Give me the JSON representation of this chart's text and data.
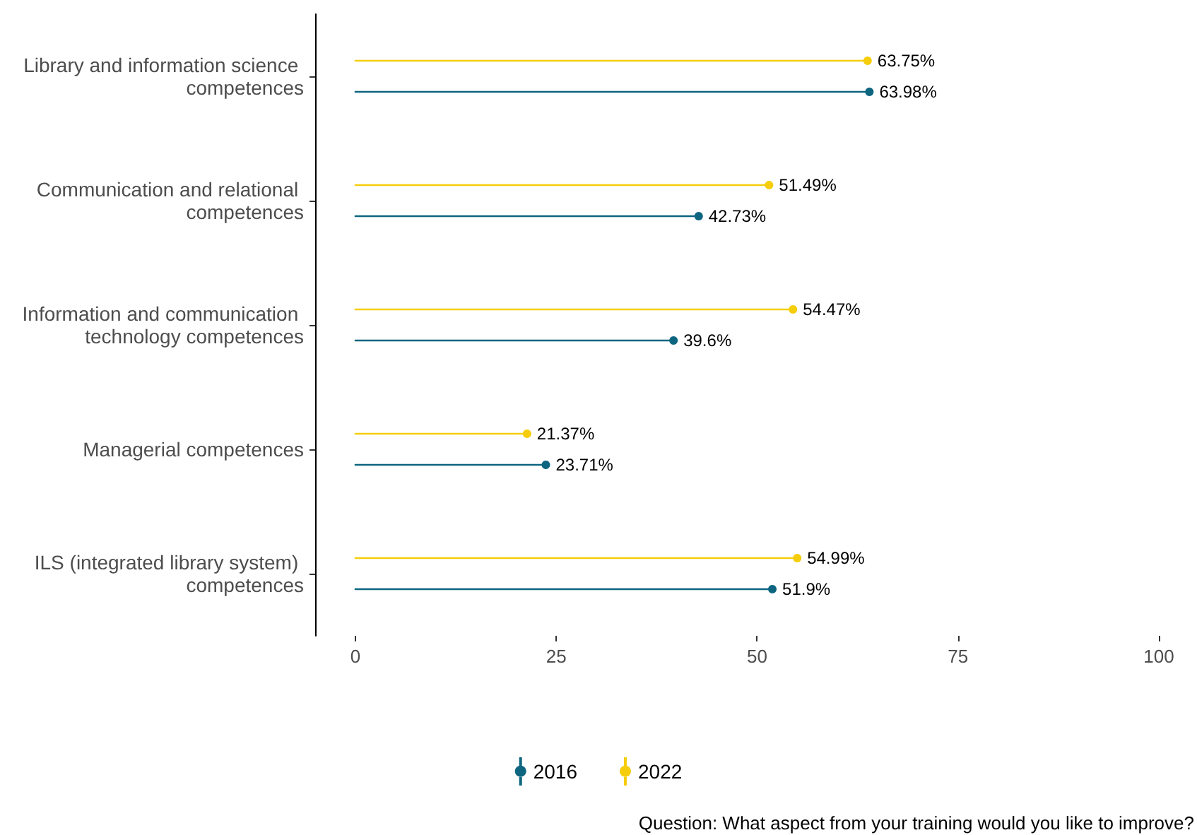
{
  "chart_data": {
    "type": "lollipop",
    "orientation": "horizontal",
    "categories": [
      "Library and information science competences",
      "Communication and relational competences",
      "Information and communication technology competences",
      "Managerial competences",
      "ILS (integrated library system) competences"
    ],
    "series": [
      {
        "name": "2016",
        "color": "#0d6580",
        "values": [
          63.98,
          42.73,
          39.6,
          23.71,
          51.9
        ],
        "value_labels": [
          "63.98%",
          "42.73%",
          "39.6%",
          "23.71%",
          "51.9%"
        ]
      },
      {
        "name": "2022",
        "color": "#f5cd0a",
        "values": [
          63.75,
          51.49,
          54.47,
          21.37,
          54.99
        ],
        "value_labels": [
          "63.75%",
          "51.49%",
          "54.47%",
          "21.37%",
          "54.99%"
        ]
      }
    ],
    "xlim": [
      -5,
      100
    ],
    "xticks": [
      0,
      25,
      50,
      75,
      100
    ],
    "grid": false,
    "legend": "bottom",
    "marker": "circle",
    "annotations": [
      "Question: What aspect from your training would you like to improve?"
    ]
  }
}
